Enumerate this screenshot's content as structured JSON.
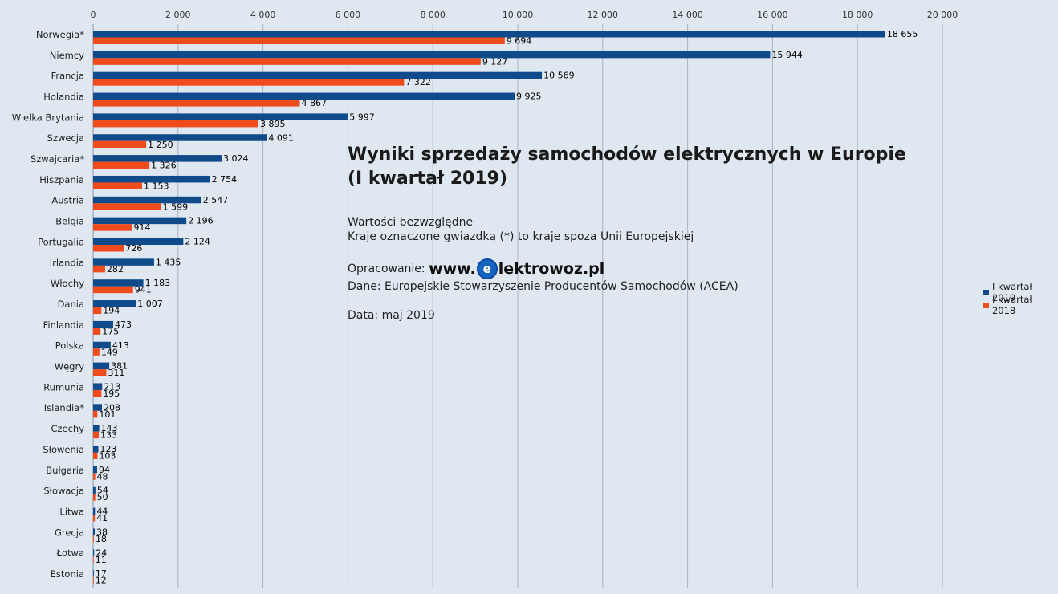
{
  "chart_data": {
    "type": "bar",
    "orientation": "horizontal",
    "title": "Wyniki sprzedaży samochodów elektrycznych w Europie",
    "subtitle": "(I kwartał 2019)",
    "xlim": [
      0,
      20000
    ],
    "x_ticks": [
      "0",
      "2 000",
      "4 000",
      "6 000",
      "8 000",
      "10 000",
      "12 000",
      "14 000",
      "16 000",
      "18 000",
      "20 000"
    ],
    "grid": "vertical",
    "legend_position": "right",
    "categories": [
      "Norwegia*",
      "Niemcy",
      "Francja",
      "Holandia",
      "Wielka Brytania",
      "Szwecja",
      "Szwajcaria*",
      "Hiszpania",
      "Austria",
      "Belgia",
      "Portugalia",
      "Irlandia",
      "Włochy",
      "Dania",
      "Finlandia",
      "Polska",
      "Węgry",
      "Rumunia",
      "Islandia*",
      "Czechy",
      "Słowenia",
      "Bułgaria",
      "Słowacja",
      "Litwa",
      "Grecja",
      "Łotwa",
      "Estonia"
    ],
    "series": [
      {
        "name": "I kwartał 2019",
        "color": "#0f4b8a",
        "values": [
          18655,
          15944,
          10569,
          9925,
          5997,
          4091,
          3024,
          2754,
          2547,
          2196,
          2124,
          1435,
          1183,
          1007,
          473,
          413,
          381,
          213,
          208,
          143,
          123,
          94,
          54,
          44,
          38,
          24,
          17
        ],
        "labels": [
          "18 655",
          "15 944",
          "10 569",
          "9 925",
          "5 997",
          "4 091",
          "3 024",
          "2 754",
          "2 547",
          "2 196",
          "2 124",
          "1 435",
          "1 183",
          "1 007",
          "473",
          "413",
          "381",
          "213",
          "208",
          "143",
          "123",
          "94",
          "54",
          "44",
          "38",
          "24",
          "17"
        ]
      },
      {
        "name": "I kwartał 2018",
        "color": "#f04b1c",
        "values": [
          9694,
          9127,
          7322,
          4867,
          3895,
          1250,
          1326,
          1153,
          1599,
          914,
          726,
          282,
          941,
          194,
          175,
          149,
          311,
          195,
          101,
          133,
          103,
          48,
          50,
          41,
          18,
          11,
          12
        ],
        "labels": [
          "9 694",
          "9 127",
          "7 322",
          "4 867",
          "3 895",
          "1 250",
          "1 326",
          "1 153",
          "1 599",
          "914",
          "726",
          "282",
          "941",
          "194",
          "175",
          "149",
          "311",
          "195",
          "101",
          "133",
          "103",
          "48",
          "50",
          "41",
          "18",
          "11",
          "12"
        ]
      }
    ]
  },
  "info": {
    "line1": "Wartości bezwzględne",
    "line2": "Kraje oznaczone gwiazdką (*) to kraje spoza Unii Europejskiej",
    "credit_prefix": "Opracowanie: ",
    "brand_www": "www.",
    "brand_e": "e",
    "brand_rest": "lektrowoz.pl",
    "source": "Dane: Europejskie Stowarzyszenie Producentów Samochodów (ACEA)",
    "date": "Data: maj 2019"
  }
}
